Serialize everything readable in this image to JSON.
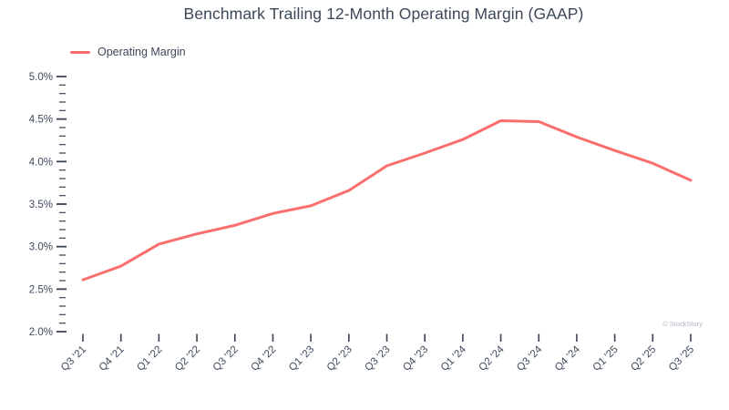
{
  "title": "Benchmark Trailing 12-Month Operating Margin (GAAP)",
  "legend": {
    "label": "Operating Margin"
  },
  "watermark": "© StockStory",
  "colors": {
    "line": "#fa6e6e",
    "text": "#3e4a5c",
    "tick": "#3a4150",
    "watermark": "#aeb6c2"
  },
  "chart_data": {
    "type": "line",
    "title": "Benchmark Trailing 12-Month Operating Margin (GAAP)",
    "categories": [
      "Q3 '21",
      "Q4 '21",
      "Q1 '22",
      "Q2 '22",
      "Q3 '22",
      "Q4 '22",
      "Q1 '23",
      "Q2 '23",
      "Q3 '23",
      "Q4 '23",
      "Q1 '24",
      "Q2 '24",
      "Q3 '24",
      "Q4 '24",
      "Q1 '25",
      "Q2 '25",
      "Q3 '25"
    ],
    "series": [
      {
        "name": "Operating Margin",
        "values": [
          2.61,
          2.77,
          3.03,
          3.15,
          3.25,
          3.39,
          3.48,
          3.66,
          3.95,
          4.1,
          4.26,
          4.48,
          4.47,
          4.29,
          4.13,
          3.98,
          3.78
        ]
      }
    ],
    "xlabel": "",
    "ylabel": "",
    "ylim": [
      2.0,
      5.0
    ],
    "y_major_step": 0.5,
    "y_minor_step": 0.1,
    "y_tick_suffix": "%",
    "grid": false,
    "legend_position": "top-left",
    "markers": false
  }
}
